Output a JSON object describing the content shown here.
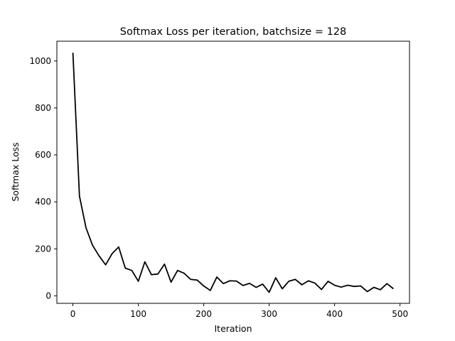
{
  "chart_data": {
    "type": "line",
    "title": "Softmax Loss per iteration, batchsize = 128",
    "xlabel": "Iteration",
    "ylabel": "Softmax Loss",
    "xlim": [
      -24.5,
      514.5
    ],
    "ylim": [
      -32,
      1084
    ],
    "xticks": [
      0,
      100,
      200,
      300,
      400,
      500
    ],
    "yticks": [
      0,
      200,
      400,
      600,
      800,
      1000
    ],
    "grid": false,
    "legend": "none",
    "line_color": "#000000",
    "series": [
      {
        "x": [
          0,
          10,
          20,
          30,
          40,
          50,
          60,
          70,
          80,
          90,
          100,
          110,
          120,
          130,
          140,
          150,
          160,
          170,
          180,
          190,
          200,
          210,
          220,
          230,
          240,
          250,
          260,
          270,
          280,
          290,
          300,
          310,
          320,
          330,
          340,
          350,
          360,
          370,
          380,
          390,
          400,
          410,
          420,
          430,
          440,
          450,
          460,
          470,
          480,
          490
        ],
        "y": [
          1035,
          425,
          290,
          215,
          170,
          132,
          180,
          208,
          118,
          108,
          62,
          145,
          90,
          93,
          135,
          58,
          108,
          96,
          70,
          67,
          42,
          23,
          80,
          52,
          64,
          63,
          44,
          53,
          36,
          50,
          15,
          77,
          30,
          62,
          70,
          47,
          64,
          54,
          27,
          62,
          45,
          37,
          45,
          40,
          42,
          18,
          36,
          26,
          52,
          30
        ]
      }
    ]
  }
}
